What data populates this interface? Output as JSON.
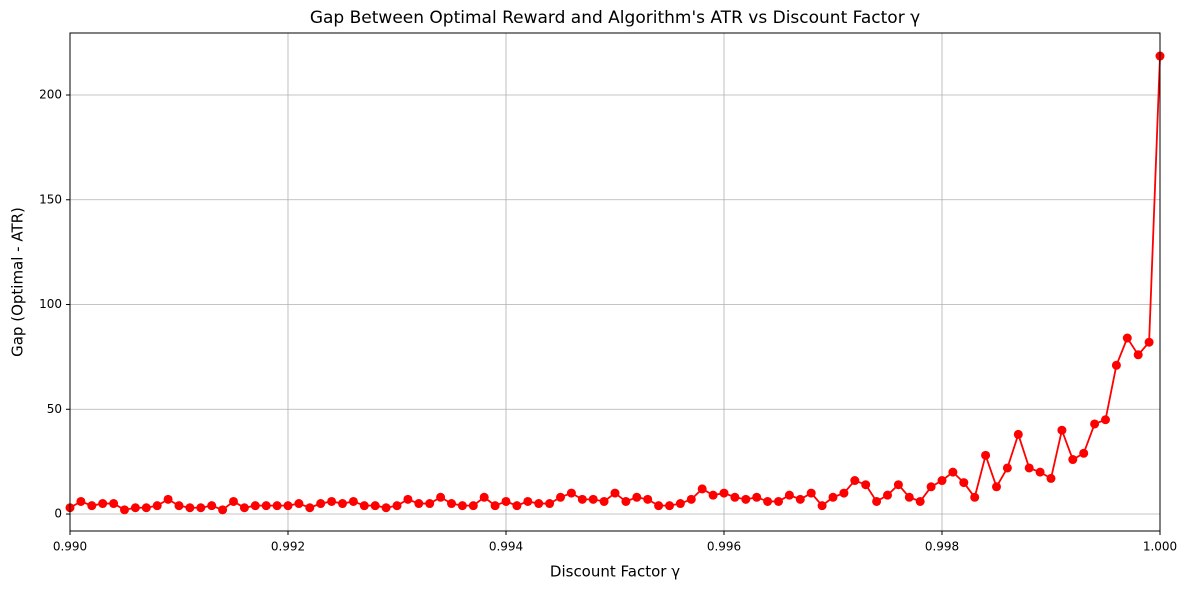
{
  "chart_data": {
    "type": "line",
    "title": "Gap Between Optimal Reward and Algorithm's ATR vs Discount Factor γ",
    "xlabel": "Discount Factor γ",
    "ylabel": "Gap (Optimal - ATR)",
    "x": [
      0.99,
      0.9901,
      0.9902,
      0.9903,
      0.9904,
      0.9905,
      0.9906,
      0.9907,
      0.9908,
      0.9909,
      0.991,
      0.9911,
      0.9912,
      0.9913,
      0.9914,
      0.9915,
      0.9916,
      0.9917,
      0.9918,
      0.9919,
      0.992,
      0.9921,
      0.9922,
      0.9923,
      0.9924,
      0.9925,
      0.9926,
      0.9927,
      0.9928,
      0.9929,
      0.993,
      0.9931,
      0.9932,
      0.9933,
      0.9934,
      0.9935,
      0.9936,
      0.9937,
      0.9938,
      0.9939,
      0.994,
      0.9941,
      0.9942,
      0.9943,
      0.9944,
      0.9945,
      0.9946,
      0.9947,
      0.9948,
      0.9949,
      0.995,
      0.9951,
      0.9952,
      0.9953,
      0.9954,
      0.9955,
      0.9956,
      0.9957,
      0.9958,
      0.9959,
      0.996,
      0.9961,
      0.9962,
      0.9963,
      0.9964,
      0.9965,
      0.9966,
      0.9967,
      0.9968,
      0.9969,
      0.997,
      0.9971,
      0.9972,
      0.9973,
      0.9974,
      0.9975,
      0.9976,
      0.9977,
      0.9978,
      0.9979,
      0.998,
      0.9981,
      0.9982,
      0.9983,
      0.9984,
      0.9985,
      0.9986,
      0.9987,
      0.9988,
      0.9989,
      0.999,
      0.9991,
      0.9992,
      0.9993,
      0.9994,
      0.9995,
      0.9996,
      0.9997,
      0.9998,
      0.9999,
      1.0
    ],
    "series": [
      {
        "color": "#ff0000",
        "values": [
          3,
          6,
          4,
          5,
          5,
          2,
          3,
          3,
          4,
          7,
          4,
          3,
          3,
          4,
          2,
          6,
          3,
          4,
          4,
          4,
          4,
          5,
          3,
          5,
          6,
          5,
          6,
          4,
          4,
          3,
          4,
          7,
          5,
          5,
          8,
          5,
          4,
          4,
          8,
          4,
          6,
          4,
          6,
          5,
          5,
          8,
          10,
          7,
          7,
          6,
          10,
          6,
          8,
          7,
          4,
          4,
          5,
          7,
          12,
          9,
          10,
          8,
          7,
          8,
          6,
          6,
          9,
          7,
          10,
          4,
          8,
          10,
          16,
          14,
          6,
          9,
          14,
          8,
          6,
          13,
          16,
          20,
          15,
          8,
          28,
          13,
          22,
          38,
          22,
          20,
          17,
          40,
          26,
          29,
          43,
          45,
          71,
          84,
          76,
          82,
          218.6
        ]
      }
    ],
    "xlim": [
      0.99,
      1.0
    ],
    "ylim": [
      -8.1,
      229.6
    ],
    "xticks": [
      {
        "value": 0.99,
        "label": "0.990"
      },
      {
        "value": 0.992,
        "label": "0.992"
      },
      {
        "value": 0.994,
        "label": "0.994"
      },
      {
        "value": 0.996,
        "label": "0.996"
      },
      {
        "value": 0.998,
        "label": "0.998"
      },
      {
        "value": 1.0,
        "label": "1.000"
      }
    ],
    "yticks": [
      0,
      50,
      100,
      150,
      200
    ],
    "grid": true
  }
}
